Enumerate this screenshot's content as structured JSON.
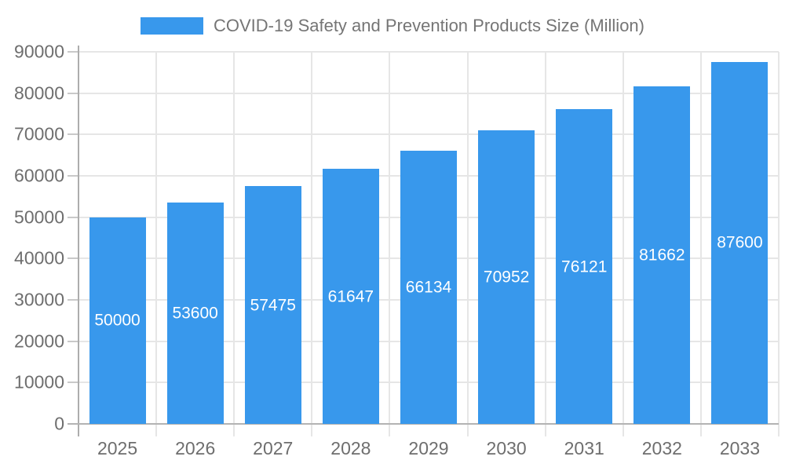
{
  "chart_data": {
    "type": "bar",
    "title": "COVID-19 Safety and Prevention Products Size (Million)",
    "legend": {
      "position": "top",
      "entries": [
        "COVID-19 Safety and Prevention Products Size (Million)"
      ]
    },
    "categories": [
      "2025",
      "2026",
      "2027",
      "2028",
      "2029",
      "2030",
      "2031",
      "2032",
      "2033"
    ],
    "series": [
      {
        "name": "COVID-19 Safety and Prevention Products Size (Million)",
        "values": [
          50000,
          53600,
          57475,
          61647,
          66134,
          70952,
          76121,
          81662,
          87600
        ]
      }
    ],
    "bar_value_labels": [
      "50000",
      "53600",
      "57475",
      "61647",
      "66134",
      "70952",
      "76121",
      "81662",
      "87600"
    ],
    "xlabel": "",
    "ylabel": "",
    "ylim": [
      0,
      90000
    ],
    "y_ticks": [
      0,
      10000,
      20000,
      30000,
      40000,
      50000,
      60000,
      70000,
      80000,
      90000
    ],
    "grid": true,
    "colors": {
      "bar": "#3898EC",
      "grid_line": "#E6E6E6",
      "axis_line": "#B3B3B3",
      "tick_text": "#6E6E6E",
      "title_text": "#757575",
      "bar_label_text": "#FFFFFF",
      "background": "#FFFFFF"
    }
  }
}
